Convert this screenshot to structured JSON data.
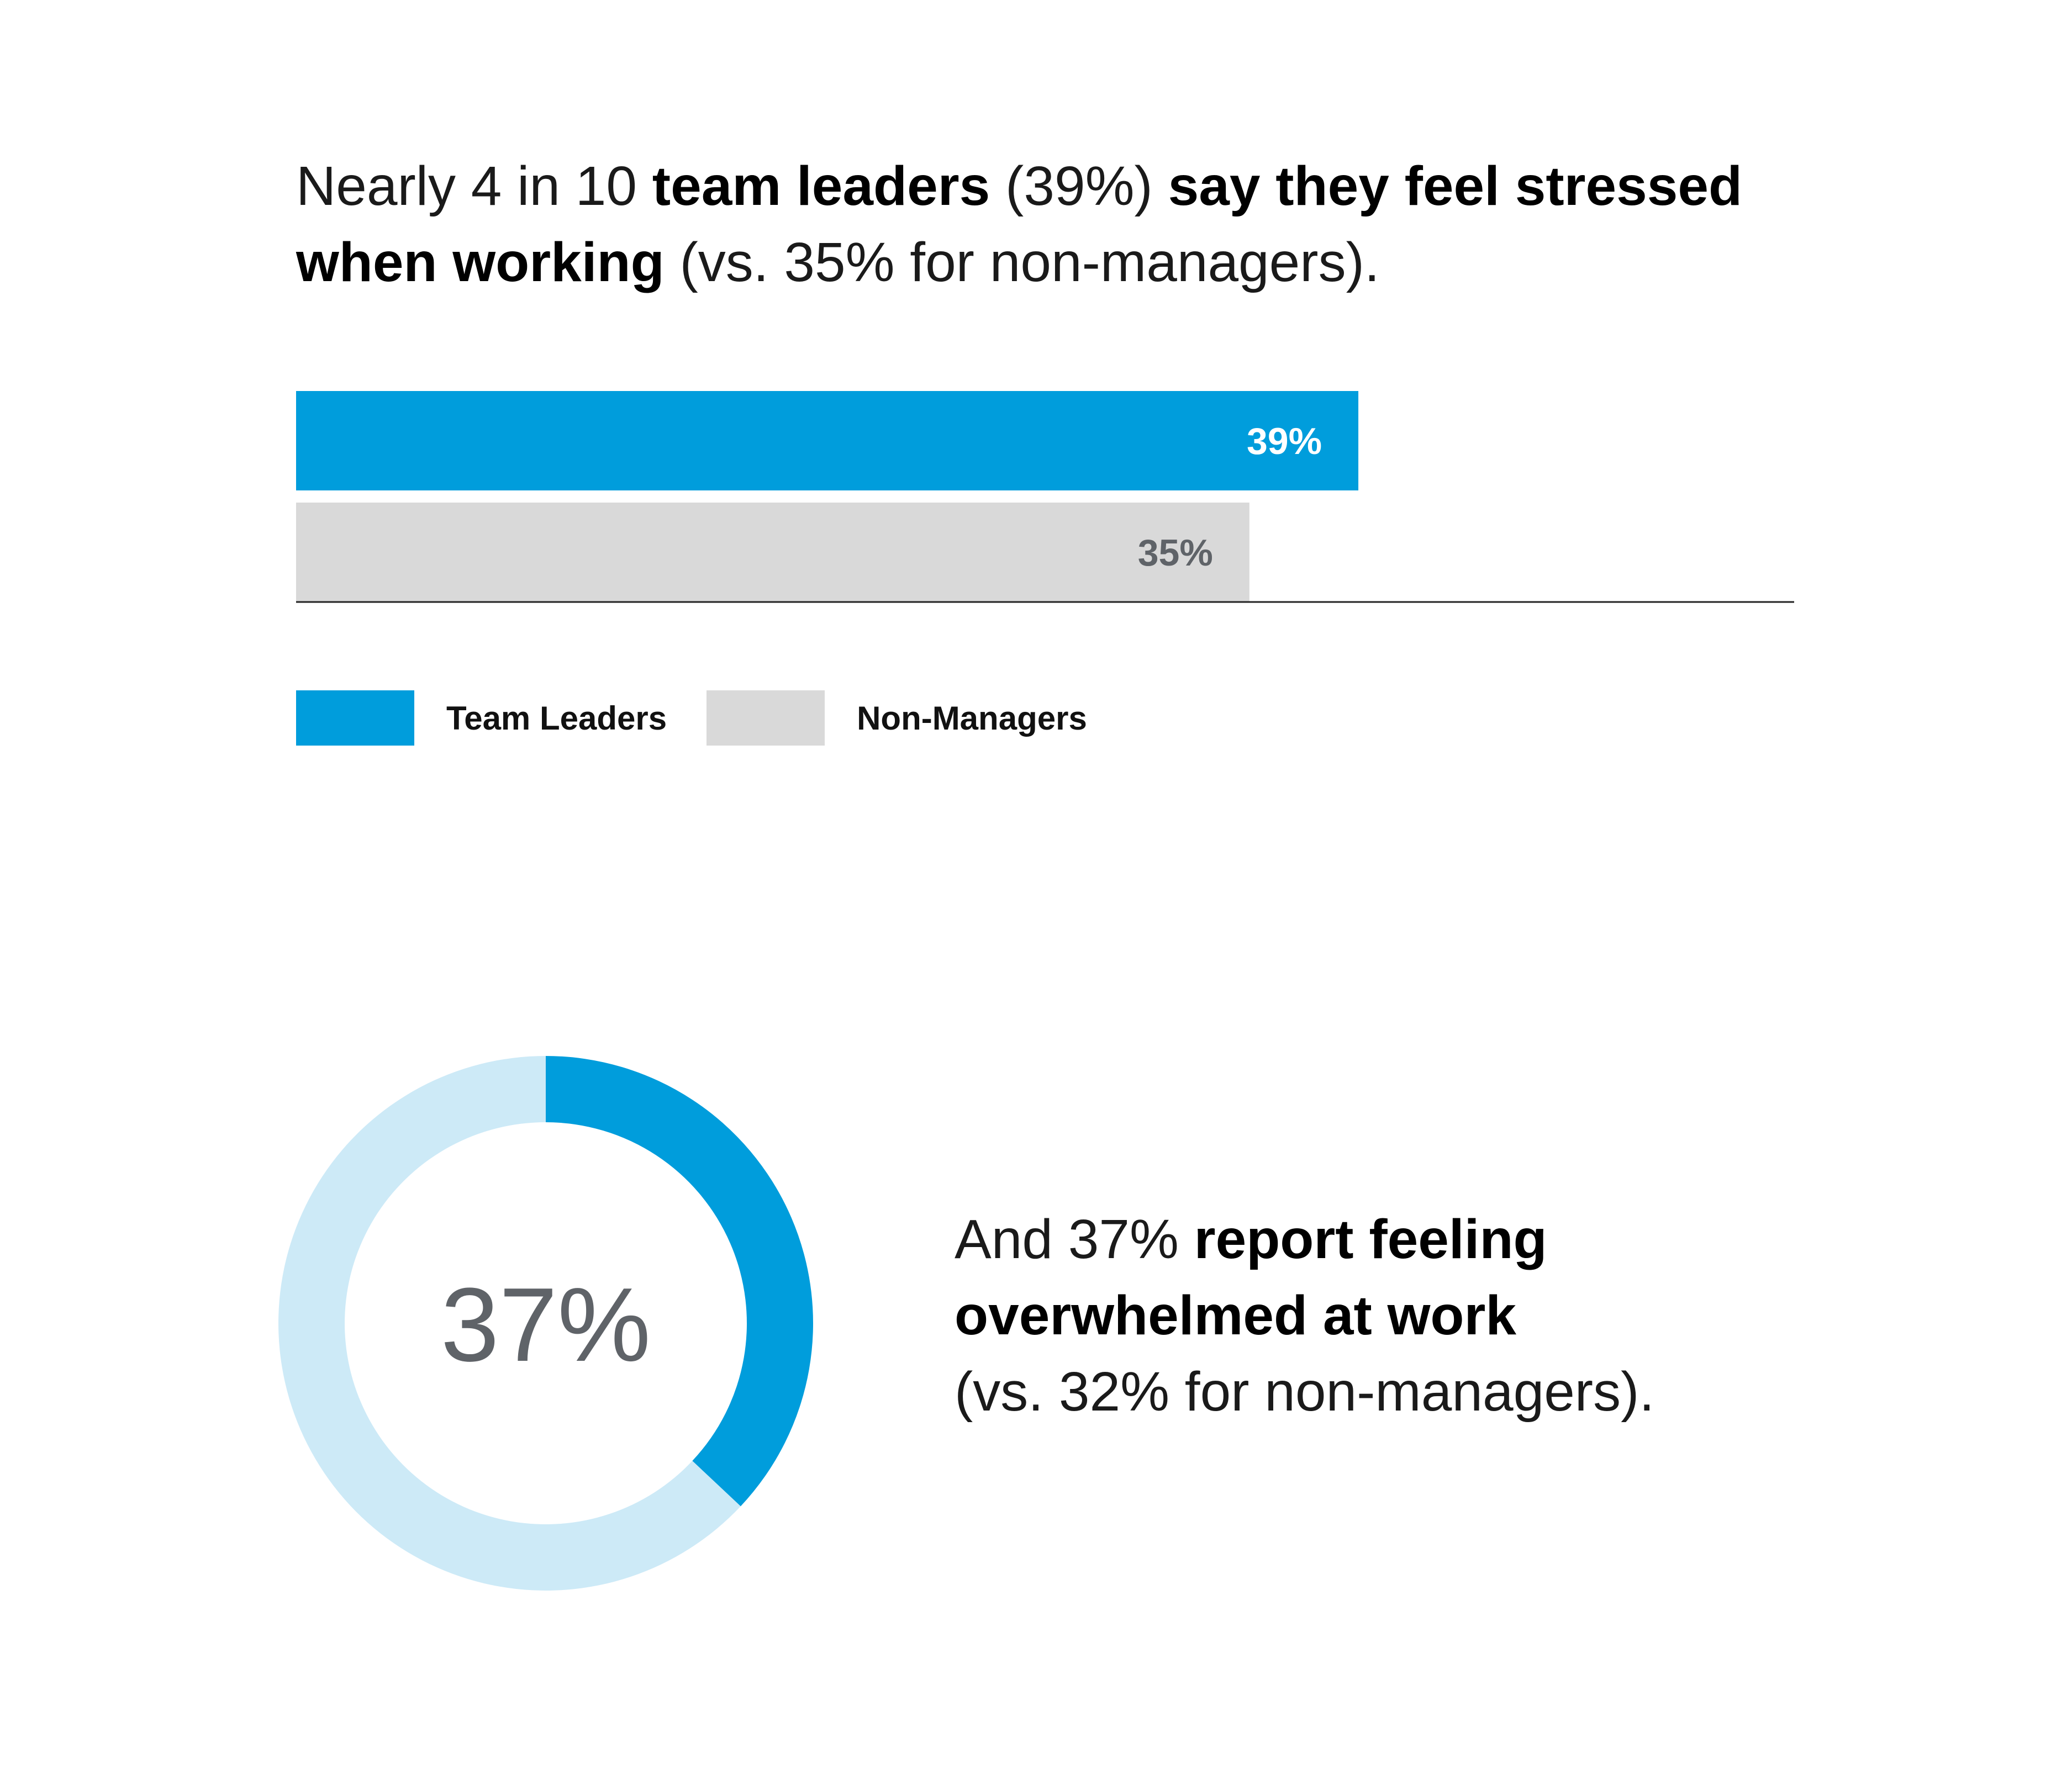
{
  "headline": {
    "t1": "Nearly 4 in 10 ",
    "b1": "team leaders",
    "t2": " (39%) ",
    "b2": "say they feel stressed when working",
    "t3": " (vs. 35% for non-managers)."
  },
  "colors": {
    "team_leaders": "#009ddc",
    "non_managers": "#d9d9d9",
    "donut_track": "#cdeaf7",
    "label_on_blue": "#ffffff",
    "label_on_gray": "#5f6368",
    "center_text": "#5f6368"
  },
  "chart_data": [
    {
      "type": "bar",
      "orientation": "horizontal",
      "categories": [
        "Team Leaders",
        "Non-Managers"
      ],
      "values": [
        39,
        35
      ],
      "data_labels": [
        "39%",
        "35%"
      ],
      "xlim": [
        0,
        55
      ],
      "legend": {
        "placement": "bottom-left",
        "entries": [
          "Team Leaders",
          "Non-Managers"
        ]
      },
      "grid": false
    },
    {
      "type": "pie",
      "style": "donut",
      "values": [
        37,
        63
      ],
      "center_label": "37%"
    }
  ],
  "donut_text": {
    "t1": "And 37% ",
    "b1": "report feeling overwhelmed at work",
    "t2": "(vs. 32% for non-managers)."
  }
}
